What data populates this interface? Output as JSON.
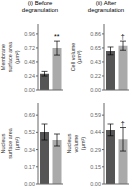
{
  "chart_data": [
    {
      "type": "bar",
      "title": "(i) Before degranulation",
      "ylabel": "Membrane\nsurface area\n(μm²)",
      "categories": [
        null,
        null
      ],
      "values": [
        0.28,
        0.72
      ],
      "errors": [
        0.04,
        0.12
      ],
      "colors": [
        "#555555",
        "#aaaaaa"
      ],
      "ylim": [
        0,
        1.134
      ],
      "yticks": [
        {
          "value": 0,
          "label": "0.00"
        },
        {
          "value": 0.240975,
          "label": "0.24"
        },
        {
          "value": 0.48195,
          "label": "0.48"
        },
        {
          "value": 0.722925,
          "label": "0.72"
        },
        {
          "value": 0.9639,
          "label": "0.96"
        }
      ],
      "annotations": [
        {
          "index": 1,
          "text": "**"
        }
      ],
      "grid": false,
      "tick_labels": "y"
    },
    {
      "type": "bar",
      "title": "(ii) After degranulation",
      "ylabel": "Cell volume\n(μm³)",
      "categories": [
        null,
        null
      ],
      "values": [
        0.6,
        0.68
      ],
      "errors": [
        0.06,
        0.07
      ],
      "colors": [
        "#555555",
        "#aaaaaa"
      ],
      "ylim": [
        0,
        1.0125
      ],
      "yticks": [
        {
          "value": 0,
          "label": "0.00"
        },
        {
          "value": 0.21515625,
          "label": "0.22"
        },
        {
          "value": 0.4303125,
          "label": "0.43"
        },
        {
          "value": 0.64546875,
          "label": "0.65"
        },
        {
          "value": 0.860625,
          "label": "0.86"
        }
      ],
      "annotations": [
        {
          "index": 1,
          "text": "†"
        }
      ],
      "grid": false,
      "tick_labels": "y"
    },
    {
      "type": "bar",
      "ylabel": "Nucleus\nsurface area\n(μm²)",
      "categories": [
        null,
        null
      ],
      "values": [
        0.52,
        0.44
      ],
      "errors": [
        0.08,
        0.06
      ],
      "colors": [
        "#555555",
        "#aaaaaa"
      ],
      "ylim": [
        0,
        0.81
      ],
      "yticks": [
        {
          "value": 0,
          "label": "0.00"
        },
        {
          "value": 0.172125,
          "label": "0.17"
        },
        {
          "value": 0.34425,
          "label": "0.34"
        },
        {
          "value": 0.516375,
          "label": "0.52"
        },
        {
          "value": 0.6885,
          "label": "0.69"
        }
      ],
      "grid": false,
      "tick_labels": "y"
    },
    {
      "type": "bar",
      "ylabel": "Nucleus\nvolume\n(μm³)",
      "categories": [
        null,
        null
      ],
      "values": [
        0.46,
        0.38
      ],
      "errors": [
        0.05,
        0.1
      ],
      "colors": [
        "#555555",
        "#aaaaaa"
      ],
      "ylim": [
        0,
        0.6885
      ],
      "yticks": [
        {
          "value": 0,
          "label": "0.00"
        },
        {
          "value": 0.14630625,
          "label": "0.15"
        },
        {
          "value": 0.2926125,
          "label": "0.29"
        },
        {
          "value": 0.43891875,
          "label": "0.44"
        },
        {
          "value": 0.585225,
          "label": "0.59"
        }
      ],
      "annotations": [
        {
          "index": 1,
          "text": "†"
        }
      ],
      "grid": false,
      "tick_labels": "y"
    }
  ]
}
